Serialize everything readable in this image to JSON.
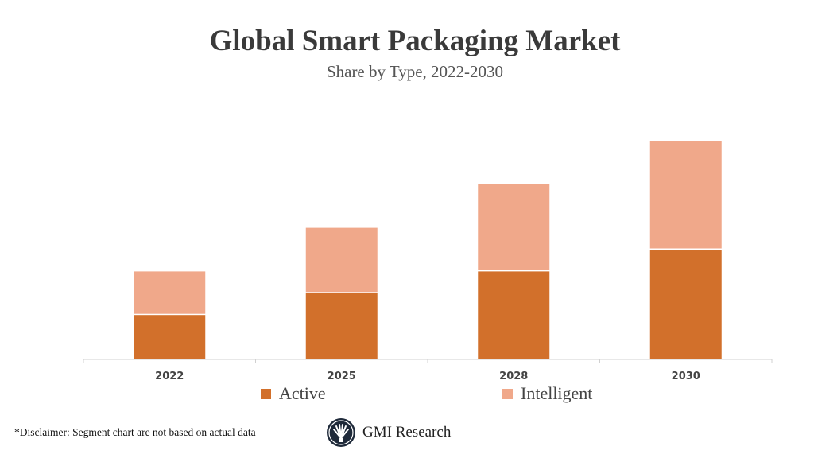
{
  "chart_data": {
    "type": "bar",
    "stacked": true,
    "title": "Global Smart Packaging Market",
    "subtitle": "Share by Type, 2022-2030",
    "categories": [
      "2022",
      "2025",
      "2028",
      "2030"
    ],
    "series": [
      {
        "name": "Active",
        "values": [
          2,
          3,
          4,
          5
        ],
        "color": "#D2702B"
      },
      {
        "name": "Intelligent",
        "values": [
          2,
          3,
          4,
          5
        ],
        "color": "#F0A88A"
      }
    ],
    "ylim": [
      0,
      10
    ],
    "grid": false,
    "y_axis_visible": false,
    "legend": "bottom"
  },
  "footer": {
    "disclaimer": "*Disclaimer:  Segment chart are not based on actual data",
    "brand": "GMI Research"
  }
}
